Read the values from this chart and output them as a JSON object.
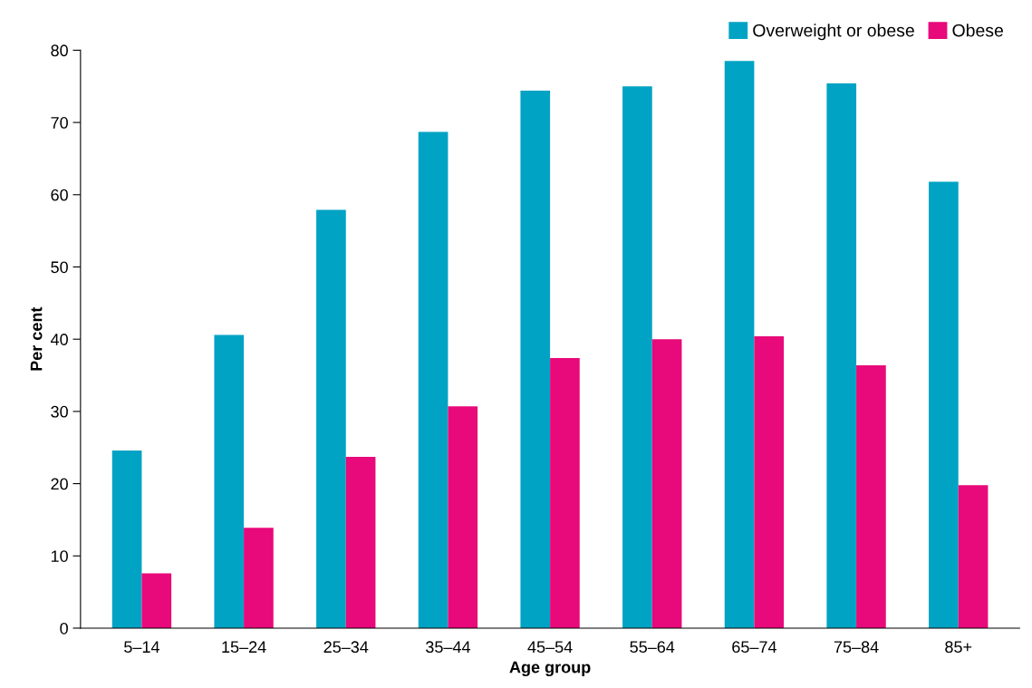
{
  "chart_data": {
    "type": "bar",
    "xlabel": "Age group",
    "ylabel": "Per cent",
    "categories": [
      "5–14",
      "15–24",
      "25–34",
      "35–44",
      "45–54",
      "55–64",
      "65–74",
      "75–84",
      "85+"
    ],
    "series": [
      {
        "name": "Overweight or obese",
        "color": "#00a3c4",
        "values": [
          24.6,
          40.6,
          57.9,
          68.7,
          74.4,
          75.0,
          78.5,
          75.4,
          61.8
        ]
      },
      {
        "name": "Obese",
        "color": "#e8097a",
        "values": [
          7.6,
          13.9,
          23.7,
          30.7,
          37.4,
          40.0,
          40.4,
          36.4,
          19.8
        ]
      }
    ],
    "ylim": [
      0,
      80
    ],
    "yticks": [
      0,
      10,
      20,
      30,
      40,
      50,
      60,
      70,
      80
    ],
    "grid": false,
    "legend": "top right"
  }
}
